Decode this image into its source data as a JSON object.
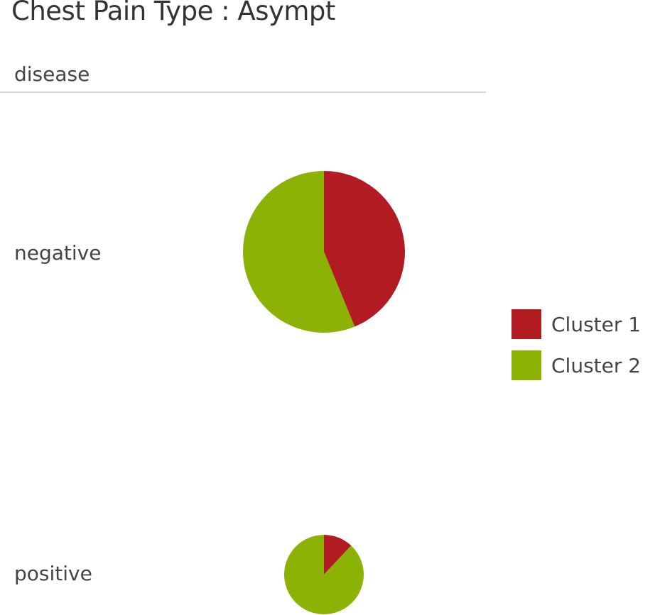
{
  "title": "Chest Pain Type : Asympt",
  "row_dimension": "disease",
  "legend": [
    {
      "label": "Cluster 1",
      "color": "#b31b23"
    },
    {
      "label": "Cluster 2",
      "color": "#8db206"
    }
  ],
  "chart_data": {
    "type": "pie",
    "title": "Chest Pain Type : Asympt",
    "row_dimension": "disease",
    "rows": [
      {
        "label": "negative",
        "slices": [
          {
            "name": "Cluster 1",
            "value": 43.8
          },
          {
            "name": "Cluster 2",
            "value": 56.2
          }
        ]
      },
      {
        "label": "positive",
        "slices": [
          {
            "name": "Cluster 1",
            "value": 12.0
          },
          {
            "name": "Cluster 2",
            "value": 88.0
          }
        ]
      }
    ],
    "legend": [
      "Cluster 1",
      "Cluster 2"
    ],
    "legend_position": "right"
  }
}
